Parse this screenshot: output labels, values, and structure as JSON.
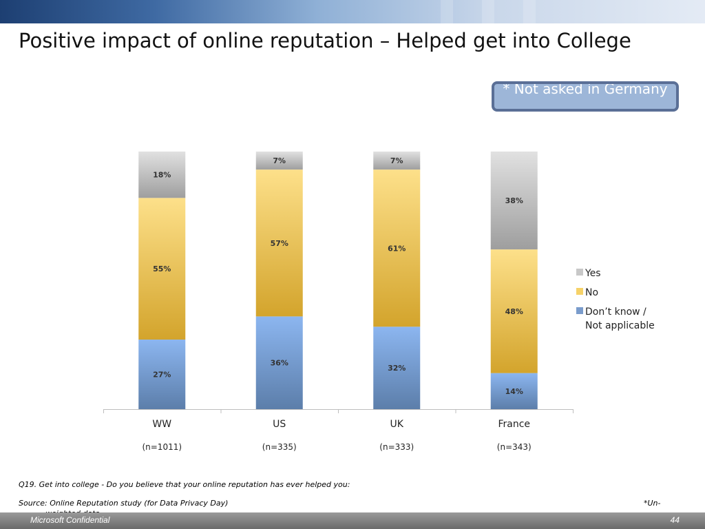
{
  "slide": {
    "title": "Positive impact of online reputation – Helped get into College",
    "note": "* Not asked in Germany",
    "question": "Q19. Get into college - Do you believe that your online reputation has ever helped you:",
    "source": "Source: Online Reputation study (for Data Privacy Day)",
    "note_unweighted_a": "*Un-",
    "note_unweighted_b": "weighted data",
    "confidential": "Microsoft Confidential",
    "page_number": "44"
  },
  "chart_data": {
    "type": "bar",
    "stacked": true,
    "categories": [
      "WW",
      "US",
      "UK",
      "France"
    ],
    "sample_sizes": [
      "(n=1011)",
      "(n=335)",
      "(n=333)",
      "(n=343)"
    ],
    "series": [
      {
        "name": "Don’t know / Not applicable",
        "values": [
          27,
          36,
          32,
          14
        ],
        "labels": [
          "27%",
          "36%",
          "32%",
          "14%"
        ],
        "color_top": "#8cb6f0",
        "color_bottom": "#5c7eaa"
      },
      {
        "name": "No",
        "values": [
          55,
          57,
          61,
          48
        ],
        "labels": [
          "55%",
          "57%",
          "61%",
          "48%"
        ],
        "color_top": "#fde08a",
        "color_bottom": "#d3a42c"
      },
      {
        "name": "Yes",
        "values": [
          18,
          7,
          7,
          38
        ],
        "labels": [
          "18%",
          "7%",
          "7%",
          "38%"
        ],
        "color_top": "#e1e1e1",
        "color_bottom": "#9e9e9e"
      }
    ],
    "legend": {
      "position": "right",
      "items": [
        {
          "label_lines": [
            "Yes"
          ],
          "color": "#c8c8c8"
        },
        {
          "label_lines": [
            "No"
          ],
          "color": "#f6d268"
        },
        {
          "label_lines": [
            "Don’t know /",
            "Not applicable"
          ],
          "color": "#7a9ccc"
        }
      ]
    },
    "ylim": [
      0,
      100
    ],
    "grid": false
  }
}
